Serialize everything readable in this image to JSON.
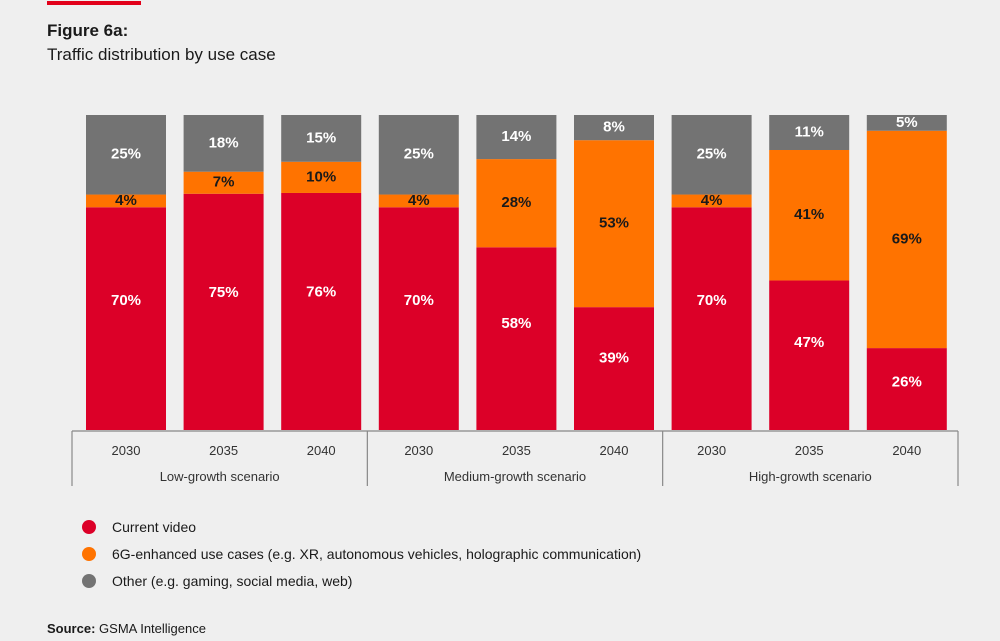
{
  "header": {
    "figure_label": "Figure 6a:",
    "figure_title": "Traffic distribution by use case"
  },
  "colors": {
    "accent": "#e2001a",
    "current_video": "#dc0028",
    "enhanced_6g": "#ff7300",
    "other": "#737373"
  },
  "chart_data": {
    "type": "bar",
    "stacked": true,
    "title": "Traffic distribution by use case",
    "xlabel": "",
    "ylabel": "",
    "ylim": [
      0,
      100
    ],
    "groups": [
      "Low-growth scenario",
      "Medium-growth scenario",
      "High-growth scenario"
    ],
    "categories": [
      "2030",
      "2035",
      "2040",
      "2030",
      "2035",
      "2040",
      "2030",
      "2035",
      "2040"
    ],
    "series": [
      {
        "name": "Current video",
        "color": "#dc0028",
        "label_color": "#ffffff",
        "values": [
          70,
          75,
          76,
          70,
          58,
          39,
          70,
          47,
          26
        ]
      },
      {
        "name": "6G-enhanced use cases (e.g. XR, autonomous vehicles, holographic communication)",
        "color": "#ff7300",
        "label_color": "#1a1a1a",
        "values": [
          4,
          7,
          10,
          4,
          28,
          53,
          4,
          41,
          69
        ]
      },
      {
        "name": "Other (e.g. gaming, social media, web)",
        "color": "#737373",
        "label_color": "#ffffff",
        "values": [
          25,
          18,
          15,
          25,
          14,
          8,
          25,
          11,
          5
        ]
      }
    ],
    "legend_position": "bottom-left",
    "grid": false
  },
  "legend": [
    {
      "label": "Current video",
      "color": "#dc0028"
    },
    {
      "label": "6G-enhanced use cases (e.g. XR, autonomous vehicles, holographic communication)",
      "color": "#ff7300"
    },
    {
      "label": "Other (e.g. gaming, social media, web)",
      "color": "#737373"
    }
  ],
  "source": {
    "label": "Source:",
    "text": "GSMA Intelligence"
  }
}
